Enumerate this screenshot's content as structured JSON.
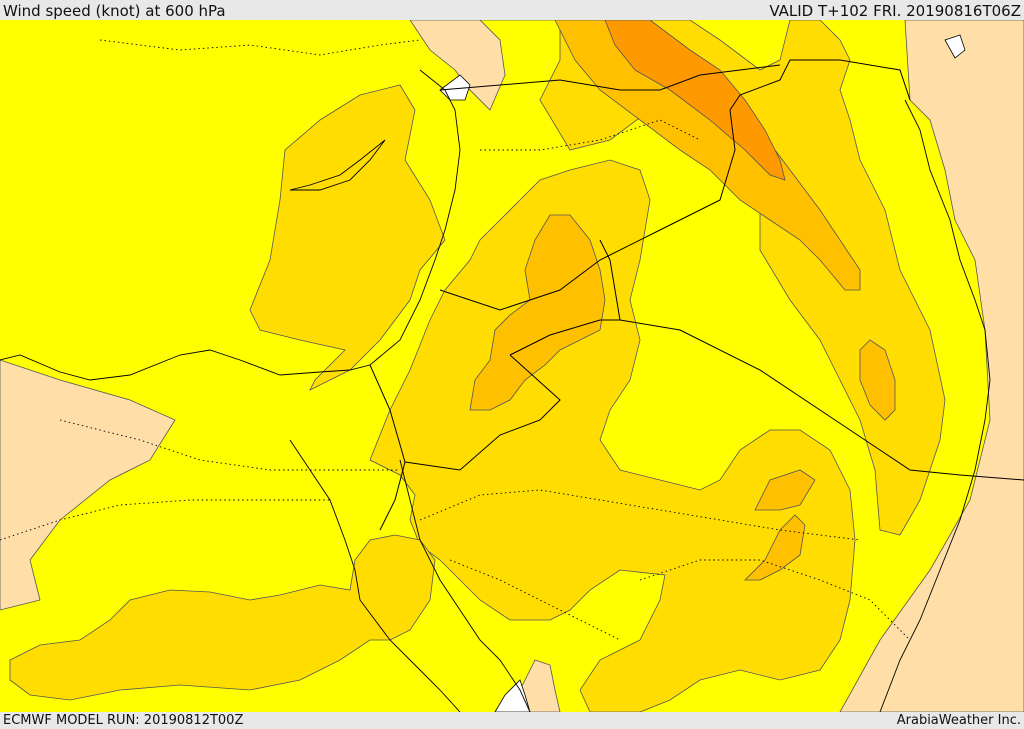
{
  "header": {
    "title": "Wind speed (knot) at 600 hPa",
    "valid": "VALID T+102 FRI. 20190816T06Z"
  },
  "footer": {
    "model_run": "ECMWF MODEL RUN: 20190812T00Z",
    "credit": "ArabiaWeather Inc."
  },
  "map": {
    "fills": {
      "land_low": "#ffdea8",
      "level_1": "#ffff00",
      "level_2": "#ffdd00",
      "level_3": "#ffc000",
      "level_4": "#ffa000",
      "level_5": "#ff9900",
      "water": "#ffffff"
    },
    "line_colors": {
      "contour": "#555555",
      "coastline": "#000000",
      "border": "#000000"
    }
  }
}
